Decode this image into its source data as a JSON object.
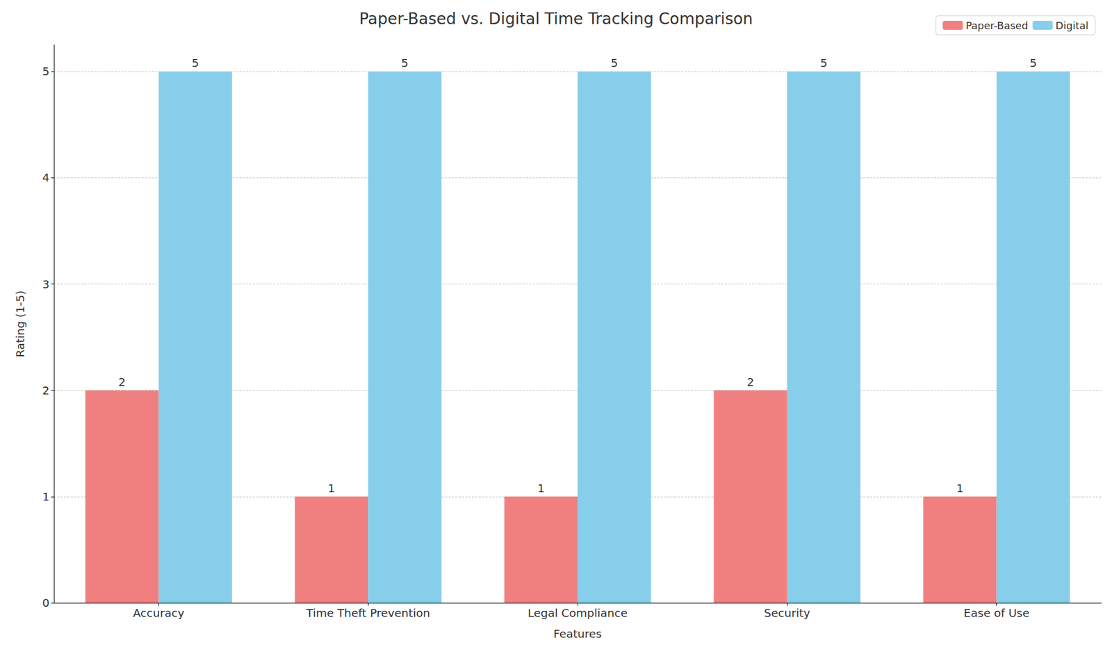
{
  "chart_data": {
    "type": "bar",
    "title": "Paper-Based vs. Digital Time Tracking Comparison",
    "x_label": "Features",
    "y_label": "Rating (1-5)",
    "categories": [
      "Accuracy",
      "Time Theft Prevention",
      "Legal Compliance",
      "Security",
      "Ease of Use"
    ],
    "series": [
      {
        "name": "Paper-Based",
        "color": "#f08080",
        "values": [
          2,
          1,
          1,
          2,
          1
        ]
      },
      {
        "name": "Digital",
        "color": "#87ceeb",
        "values": [
          5,
          5,
          5,
          5,
          5
        ]
      }
    ],
    "ylim": [
      0,
      5.25
    ],
    "yticks": [
      0,
      1,
      2,
      3,
      4,
      5
    ],
    "grid": true,
    "legend": "upper right",
    "data_labels": true
  }
}
